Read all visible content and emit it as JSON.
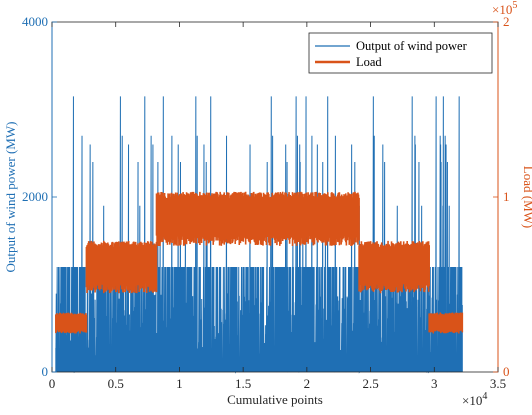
{
  "chart_data": {
    "type": "line",
    "xlabel": "Cumulative points",
    "x_exponent_label": "×10",
    "x_exponent": "4",
    "xlim": [
      0,
      3.5
    ],
    "xticks": [
      "0",
      "0.5",
      "1",
      "1.5",
      "2",
      "2.5",
      "3",
      "3.5"
    ],
    "y_left": {
      "label": "Output of wind power (MW)",
      "lim": [
        0,
        4000
      ],
      "ticks": [
        "0",
        "2000",
        "4000"
      ],
      "color": "#1f6fb4"
    },
    "y_right": {
      "label": "Load (MW)",
      "exponent_label": "×10",
      "exponent": "5",
      "lim": [
        0,
        2
      ],
      "ticks": [
        "0",
        "1",
        "2"
      ],
      "color": "#d95319"
    },
    "legend_position": "top-right",
    "series": [
      {
        "name": "Output of wind power",
        "axis": "left",
        "color": "#1f6fb4",
        "x_range": [
          0.03,
          3.22
        ],
        "typical_max": 1200,
        "peak_values": [
          3150,
          2700,
          2600,
          2400,
          1900
        ],
        "min": 0
      },
      {
        "name": "Load",
        "axis": "right",
        "color": "#d95319",
        "segments": [
          {
            "x": [
              0.03,
              0.27
            ],
            "min": 0.22,
            "max": 0.34
          },
          {
            "x": [
              0.27,
              0.82
            ],
            "min": 0.45,
            "max": 0.75
          },
          {
            "x": [
              0.82,
              2.41
            ],
            "min": 0.72,
            "max": 1.03
          },
          {
            "x": [
              2.41,
              2.96
            ],
            "min": 0.45,
            "max": 0.75
          },
          {
            "x": [
              2.96,
              3.22
            ],
            "min": 0.22,
            "max": 0.34
          }
        ]
      }
    ]
  }
}
